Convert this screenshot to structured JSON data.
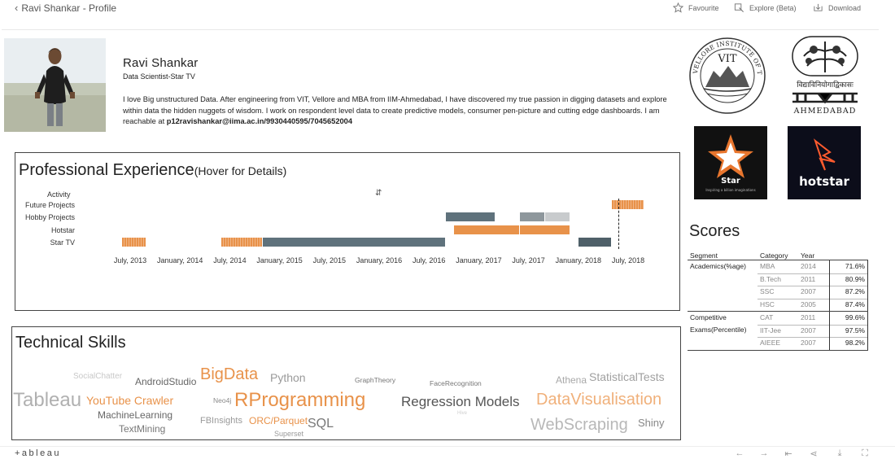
{
  "header": {
    "back_label": "Ravi Shankar - Profile",
    "favourite_label": "Favourite",
    "explore_label": "Explore (Beta)",
    "download_label": "Download"
  },
  "profile": {
    "name": "Ravi Shankar",
    "role": "Data Scientist-Star TV",
    "bio": "I love Big unstructured Data. After engineering from VIT, Vellore and MBA from IIM-Ahmedabad, I have discovered my true passion in digging datasets and explore within data the hidden nuggets of wisdom. I work on respondent level data to create predictive models, consumer pen-picture and cutting edge dashboards.  I am reachable at ",
    "contact": "p12ravishankar@iima.ac.in/9930440595/7045652004"
  },
  "logos": {
    "vit_text": "VIT",
    "vit_ring": "VELLORE INSTITUTE OF TECHNOLOGY",
    "iim_hindi": "विद्याविनियोगाद्विकासः",
    "iim_name": "AHMEDABAD",
    "star_name": "Star",
    "star_tag": "Inspiring a billion imaginations",
    "hotstar_name": "hotstar"
  },
  "experience": {
    "title": "Professional Experience",
    "hint": "(Hover for Details)",
    "column_header": "Activity",
    "categories": [
      "Future Projects",
      "Hobby Projects",
      "Hotstar",
      "Star TV"
    ],
    "ticks": [
      "July, 2013",
      "January, 2014",
      "July, 2014",
      "January, 2015",
      "July, 2015",
      "January, 2016",
      "July, 2016",
      "January, 2017",
      "July, 2017",
      "January, 2018",
      "July, 2018"
    ],
    "bars": [
      {
        "row": "Future Projects",
        "start": "2018-05",
        "end": "2018-09",
        "color": "#e8924a",
        "stripe": true
      },
      {
        "row": "Hobby Projects",
        "start": "2016-09",
        "end": "2017-03",
        "color": "#5f727c"
      },
      {
        "row": "Hobby Projects",
        "start": "2017-06",
        "end": "2017-09",
        "color": "#8e979c"
      },
      {
        "row": "Hobby Projects",
        "start": "2017-09",
        "end": "2017-12",
        "color": "#c8cbcd"
      },
      {
        "row": "Hotstar",
        "start": "2016-10",
        "end": "2017-06",
        "color": "#e8924a"
      },
      {
        "row": "Hotstar",
        "start": "2017-06",
        "end": "2017-12",
        "color": "#e8924a"
      },
      {
        "row": "Star TV",
        "start": "2013-06",
        "end": "2013-09",
        "color": "#e8924a",
        "stripe": true
      },
      {
        "row": "Star TV",
        "start": "2014-06",
        "end": "2014-11",
        "color": "#e8924a",
        "stripe": true
      },
      {
        "row": "Star TV",
        "start": "2014-11",
        "end": "2016-09",
        "color": "#5f727c"
      },
      {
        "row": "Star TV",
        "start": "2018-01",
        "end": "2018-05",
        "color": "#4f6069"
      }
    ]
  },
  "scores": {
    "title": "Scores",
    "headers": [
      "Segment",
      "Category",
      "Year"
    ],
    "groups": [
      {
        "segment": [
          "Academics(%age)"
        ],
        "rows": [
          {
            "category": "MBA",
            "year": "2014",
            "value": "71.6%"
          },
          {
            "category": "B.Tech",
            "year": "2011",
            "value": "80.9%"
          },
          {
            "category": "SSC",
            "year": "2007",
            "value": "87.2%"
          },
          {
            "category": "HSC",
            "year": "2005",
            "value": "87.4%"
          }
        ]
      },
      {
        "segment": [
          "Competitive",
          "Exams(Percentile)"
        ],
        "rows": [
          {
            "category": "CAT",
            "year": "2011",
            "value": "99.6%"
          },
          {
            "category": "IIT-Jee",
            "year": "2007",
            "value": "97.5%"
          },
          {
            "category": "AIEEE",
            "year": "2007",
            "value": "98.2%"
          }
        ]
      }
    ]
  },
  "skills": {
    "title": "Technical Skills",
    "words": [
      {
        "text": "SocialChatter",
        "color": "#c8c8c8"
      },
      {
        "text": "AndroidStudio",
        "color": "#666666"
      },
      {
        "text": "BigData",
        "color": "#e8924a"
      },
      {
        "text": "Python",
        "color": "#9a9a9a"
      },
      {
        "text": "GraphTheory",
        "color": "#777777"
      },
      {
        "text": "FaceRecognition",
        "color": "#777777"
      },
      {
        "text": "Athena",
        "color": "#a8a8a8"
      },
      {
        "text": "StatisticalTests",
        "color": "#a0a0a0"
      },
      {
        "text": "Tableau",
        "color": "#b0b0b0"
      },
      {
        "text": "YouTube Crawler",
        "color": "#e8924a"
      },
      {
        "text": "Neo4j",
        "color": "#8a8a8a"
      },
      {
        "text": "RProgramming",
        "color": "#e8924a"
      },
      {
        "text": "Regression Models",
        "color": "#555555"
      },
      {
        "text": "DataVisualisation",
        "color": "#f0b07a"
      },
      {
        "text": "MachineLearning",
        "color": "#666666"
      },
      {
        "text": "Hive",
        "color": "#cfcfcf"
      },
      {
        "text": "FBInsights",
        "color": "#9a9a9a"
      },
      {
        "text": "ORC/Parquet",
        "color": "#e8924a"
      },
      {
        "text": "SQL",
        "color": "#777777"
      },
      {
        "text": "WebScraping",
        "color": "#b8b8b8"
      },
      {
        "text": "Shiny",
        "color": "#888888"
      },
      {
        "text": "TextMining",
        "color": "#777777"
      },
      {
        "text": "Superset",
        "color": "#9a9a9a"
      }
    ]
  },
  "footer": {
    "brand": "+ableau"
  }
}
